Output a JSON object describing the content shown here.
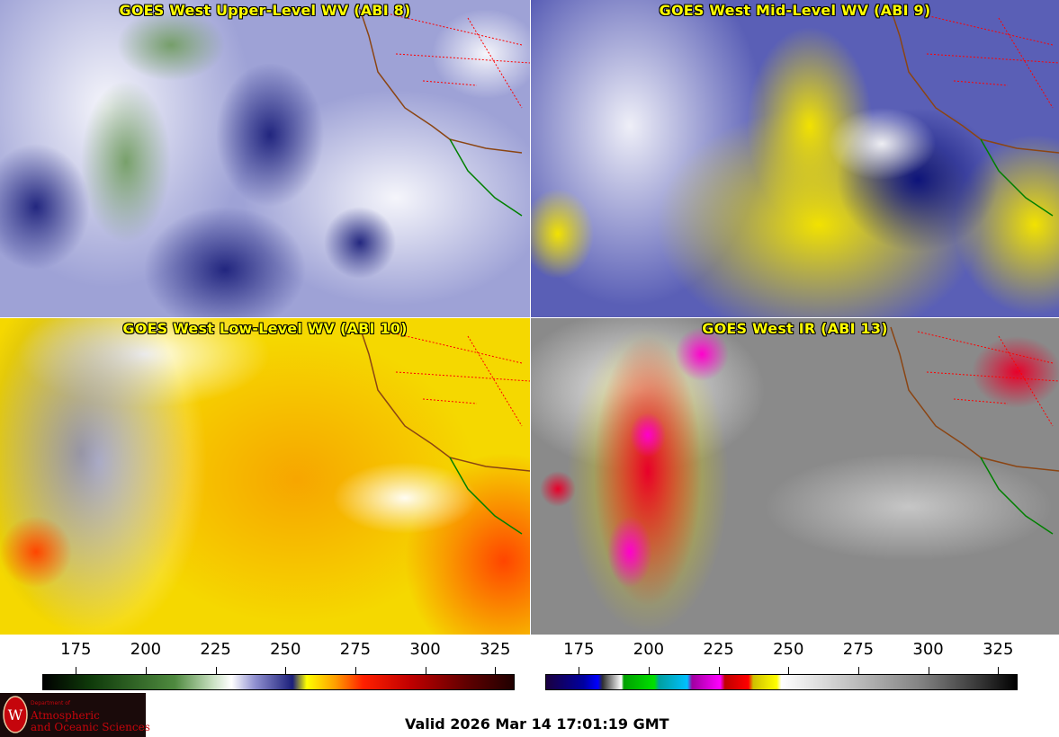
{
  "panels": [
    {
      "title": "GOES West Upper-Level WV (ABI 8)",
      "scheme": "wv_upper"
    },
    {
      "title": "GOES West Mid-Level WV (ABI 9)",
      "scheme": "wv_mid"
    },
    {
      "title": "GOES West Low-Level WV (ABI 10)",
      "scheme": "wv_low"
    },
    {
      "title": "GOES West IR (ABI 13)",
      "scheme": "ir"
    }
  ],
  "colorbars": {
    "wv": {
      "ticks": [
        "175",
        "200",
        "225",
        "250",
        "275",
        "300",
        "325"
      ],
      "min": 163,
      "max": 332
    },
    "ir": {
      "ticks": [
        "175",
        "200",
        "225",
        "250",
        "275",
        "300",
        "325"
      ],
      "min": 163,
      "max": 332
    }
  },
  "logo": {
    "dept": "Department of",
    "line1": "Atmospheric",
    "line2": "and Oceanic Sciences",
    "seal_icon": "uw-crest-icon"
  },
  "valid_time": "Valid 2026 Mar 14 17:01:19 GMT"
}
